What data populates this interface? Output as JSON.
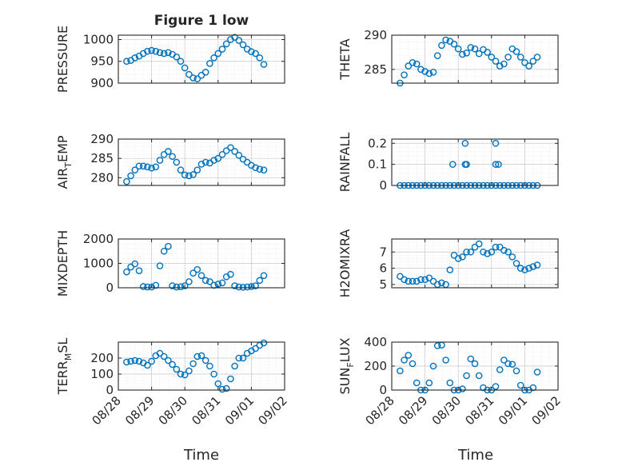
{
  "figure_title": "Figure 1 low",
  "xaxis_title": "Time",
  "date_ticks": [
    "08/28",
    "08/29",
    "08/30",
    "08/31",
    "09/01",
    "09/02"
  ],
  "colors": {
    "marker": "#0072BD",
    "axis": "#262626",
    "grid": "#c8c8c8",
    "text": "#262626"
  },
  "chart_data": [
    {
      "type": "scatter",
      "title": "Figure 1 low",
      "ylabel": "PRESSURE",
      "ylabel_sub": "",
      "ylim": [
        900,
        1010
      ],
      "yticks": [
        900,
        950,
        1000
      ],
      "ytick_labels": [
        "900",
        "950",
        "1000"
      ],
      "grid": true,
      "xlim": [
        "08/28",
        "09/02"
      ],
      "x": [
        "08/28 06:00",
        "08/28 09:00",
        "08/28 12:00",
        "08/28 15:00",
        "08/28 18:00",
        "08/28 21:00",
        "08/29 00:00",
        "08/29 03:00",
        "08/29 06:00",
        "08/29 09:00",
        "08/29 12:00",
        "08/29 15:00",
        "08/29 18:00",
        "08/29 21:00",
        "08/30 00:00",
        "08/30 03:00",
        "08/30 06:00",
        "08/30 09:00",
        "08/30 12:00",
        "08/30 15:00",
        "08/30 18:00",
        "08/30 21:00",
        "08/31 00:00",
        "08/31 03:00",
        "08/31 06:00",
        "08/31 09:00",
        "08/31 12:00",
        "08/31 15:00",
        "08/31 18:00",
        "08/31 21:00",
        "09/01 00:00",
        "09/01 03:00",
        "09/01 06:00",
        "09/01 09:00"
      ],
      "y": [
        950,
        952,
        958,
        962,
        968,
        973,
        975,
        973,
        970,
        968,
        970,
        966,
        960,
        950,
        935,
        920,
        912,
        910,
        918,
        925,
        945,
        958,
        968,
        978,
        990,
        1000,
        1005,
        998,
        988,
        978,
        972,
        968,
        958,
        943
      ]
    },
    {
      "type": "scatter",
      "ylabel": "THETA",
      "ylabel_sub": "",
      "ylim": [
        283,
        290
      ],
      "yticks": [
        285,
        290
      ],
      "ytick_labels": [
        "285",
        "290"
      ],
      "grid": true,
      "xlim": [
        "08/28",
        "09/02"
      ],
      "x": [
        "08/28 06:00",
        "08/28 09:00",
        "08/28 12:00",
        "08/28 15:00",
        "08/28 18:00",
        "08/28 21:00",
        "08/29 00:00",
        "08/29 03:00",
        "08/29 06:00",
        "08/29 09:00",
        "08/29 12:00",
        "08/29 15:00",
        "08/29 18:00",
        "08/29 21:00",
        "08/30 00:00",
        "08/30 03:00",
        "08/30 06:00",
        "08/30 09:00",
        "08/30 12:00",
        "08/30 15:00",
        "08/30 18:00",
        "08/30 21:00",
        "08/31 00:00",
        "08/31 03:00",
        "08/31 06:00",
        "08/31 09:00",
        "08/31 12:00",
        "08/31 15:00",
        "08/31 18:00",
        "08/31 21:00",
        "09/01 00:00",
        "09/01 03:00",
        "09/01 06:00",
        "09/01 09:00"
      ],
      "y": [
        283.0,
        284.2,
        285.5,
        286.0,
        285.8,
        285.0,
        284.7,
        284.4,
        284.6,
        287.0,
        288.5,
        289.3,
        289.1,
        288.7,
        288.0,
        287.2,
        287.4,
        288.2,
        288.0,
        287.3,
        287.9,
        287.5,
        286.8,
        286.2,
        285.5,
        285.8,
        286.8,
        288.0,
        287.6,
        286.8,
        286.0,
        285.5,
        286.2,
        286.8
      ]
    },
    {
      "type": "scatter",
      "ylabel": "AIR",
      "ylabel_sub": "T",
      "ylabel_rest": "EMP",
      "ylim": [
        278,
        290
      ],
      "yticks": [
        280,
        285,
        290
      ],
      "ytick_labels": [
        "280",
        "285",
        "290"
      ],
      "grid": true,
      "xlim": [
        "08/28",
        "09/02"
      ],
      "x": [
        "08/28 06:00",
        "08/28 09:00",
        "08/28 12:00",
        "08/28 15:00",
        "08/28 18:00",
        "08/28 21:00",
        "08/29 00:00",
        "08/29 03:00",
        "08/29 06:00",
        "08/29 09:00",
        "08/29 12:00",
        "08/29 15:00",
        "08/29 18:00",
        "08/29 21:00",
        "08/30 00:00",
        "08/30 03:00",
        "08/30 06:00",
        "08/30 09:00",
        "08/30 12:00",
        "08/30 15:00",
        "08/30 18:00",
        "08/30 21:00",
        "08/31 00:00",
        "08/31 03:00",
        "08/31 06:00",
        "08/31 09:00",
        "08/31 12:00",
        "08/31 15:00",
        "08/31 18:00",
        "08/31 21:00",
        "09/01 00:00",
        "09/01 03:00",
        "09/01 06:00",
        "09/01 09:00"
      ],
      "y": [
        279.0,
        280.5,
        282.0,
        283.0,
        283.0,
        282.8,
        282.5,
        282.8,
        284.5,
        286.0,
        286.8,
        285.5,
        284.0,
        282.0,
        280.7,
        280.5,
        280.8,
        282.0,
        283.5,
        284.0,
        283.8,
        284.5,
        285.0,
        286.0,
        287.0,
        287.8,
        286.8,
        285.8,
        284.8,
        284.0,
        283.2,
        282.6,
        282.2,
        282.0
      ]
    },
    {
      "type": "scatter",
      "ylabel": "RAINFALL",
      "ylabel_sub": "",
      "ylim": [
        0,
        0.22
      ],
      "yticks": [
        0,
        0.1,
        0.2
      ],
      "ytick_labels": [
        "0",
        "0.1",
        "0.2"
      ],
      "grid": true,
      "xlim": [
        "08/28",
        "09/02"
      ],
      "x": [
        "08/28 06:00",
        "08/28 09:00",
        "08/28 12:00",
        "08/28 15:00",
        "08/28 18:00",
        "08/28 21:00",
        "08/29 00:00",
        "08/29 03:00",
        "08/29 06:00",
        "08/29 09:00",
        "08/29 12:00",
        "08/29 15:00",
        "08/29 18:00",
        "08/29 21:00",
        "08/30 00:00",
        "08/30 03:00",
        "08/30 06:00",
        "08/30 09:00",
        "08/30 12:00",
        "08/30 15:00",
        "08/30 18:00",
        "08/30 21:00",
        "08/31 00:00",
        "08/31 03:00",
        "08/31 06:00",
        "08/31 09:00",
        "08/31 12:00",
        "08/31 15:00",
        "08/31 18:00",
        "08/31 21:00",
        "09/01 00:00",
        "09/01 03:00",
        "09/01 06:00",
        "09/01 09:00",
        "08/29 20:00",
        "08/30 05:00",
        "08/30 05:00",
        "08/30 06:00",
        "08/31 03:00",
        "08/31 03:00",
        "08/31 05:00"
      ],
      "y": [
        0,
        0,
        0,
        0,
        0,
        0,
        0,
        0,
        0,
        0,
        0,
        0,
        0,
        0,
        0,
        0,
        0,
        0,
        0,
        0,
        0,
        0,
        0,
        0,
        0,
        0,
        0,
        0,
        0,
        0,
        0,
        0,
        0,
        0,
        0.1,
        0.2,
        0.1,
        0.1,
        0.2,
        0.1,
        0.1
      ]
    },
    {
      "type": "scatter",
      "ylabel": "MIXDEPTH",
      "ylabel_sub": "",
      "ylim": [
        0,
        2000
      ],
      "yticks": [
        0,
        1000,
        2000
      ],
      "ytick_labels": [
        "0",
        "1000",
        "2000"
      ],
      "grid": true,
      "xlim": [
        "08/28",
        "09/02"
      ],
      "x": [
        "08/28 06:00",
        "08/28 09:00",
        "08/28 12:00",
        "08/28 15:00",
        "08/28 18:00",
        "08/28 21:00",
        "08/29 00:00",
        "08/29 03:00",
        "08/29 06:00",
        "08/29 09:00",
        "08/29 12:00",
        "08/29 15:00",
        "08/29 18:00",
        "08/29 21:00",
        "08/30 00:00",
        "08/30 03:00",
        "08/30 06:00",
        "08/30 09:00",
        "08/30 12:00",
        "08/30 15:00",
        "08/30 18:00",
        "08/30 21:00",
        "08/31 00:00",
        "08/31 03:00",
        "08/31 06:00",
        "08/31 09:00",
        "08/31 12:00",
        "08/31 15:00",
        "08/31 18:00",
        "08/31 21:00",
        "09/01 00:00",
        "09/01 03:00",
        "09/01 06:00",
        "09/01 09:00"
      ],
      "y": [
        650,
        850,
        980,
        700,
        50,
        30,
        30,
        100,
        900,
        1500,
        1700,
        80,
        30,
        40,
        80,
        250,
        600,
        750,
        500,
        300,
        250,
        100,
        150,
        200,
        450,
        550,
        80,
        30,
        20,
        30,
        50,
        80,
        300,
        500
      ]
    },
    {
      "type": "scatter",
      "ylabel": "H2OMIXRA",
      "ylabel_sub": "",
      "ylim": [
        4.8,
        7.8
      ],
      "yticks": [
        5,
        6,
        7
      ],
      "ytick_labels": [
        "5",
        "6",
        "7"
      ],
      "grid": true,
      "xlim": [
        "08/28",
        "09/02"
      ],
      "x": [
        "08/28 06:00",
        "08/28 09:00",
        "08/28 12:00",
        "08/28 15:00",
        "08/28 18:00",
        "08/28 21:00",
        "08/29 00:00",
        "08/29 03:00",
        "08/29 06:00",
        "08/29 09:00",
        "08/29 12:00",
        "08/29 15:00",
        "08/29 18:00",
        "08/29 21:00",
        "08/30 00:00",
        "08/30 03:00",
        "08/30 06:00",
        "08/30 09:00",
        "08/30 12:00",
        "08/30 15:00",
        "08/30 18:00",
        "08/30 21:00",
        "08/31 00:00",
        "08/31 03:00",
        "08/31 06:00",
        "08/31 09:00",
        "08/31 12:00",
        "08/31 15:00",
        "08/31 18:00",
        "08/31 21:00",
        "09/01 00:00",
        "09/01 03:00",
        "09/01 06:00",
        "09/01 09:00"
      ],
      "y": [
        5.5,
        5.3,
        5.2,
        5.2,
        5.2,
        5.3,
        5.3,
        5.4,
        5.2,
        5.0,
        5.1,
        5.0,
        5.9,
        6.8,
        6.6,
        6.7,
        7.0,
        7.0,
        7.3,
        7.5,
        7.0,
        6.9,
        7.0,
        7.3,
        7.3,
        7.1,
        7.0,
        6.7,
        6.3,
        6.0,
        5.9,
        6.0,
        6.1,
        6.2
      ]
    },
    {
      "type": "scatter",
      "ylabel": "TERR",
      "ylabel_sub": "M",
      "ylabel_rest": "SL",
      "ylim": [
        0,
        300
      ],
      "yticks": [
        0,
        100,
        200
      ],
      "ytick_labels": [
        "0",
        "100",
        "200"
      ],
      "grid": true,
      "xlim": [
        "08/28",
        "09/02"
      ],
      "x": [
        "08/28 06:00",
        "08/28 09:00",
        "08/28 12:00",
        "08/28 15:00",
        "08/28 18:00",
        "08/28 21:00",
        "08/29 00:00",
        "08/29 03:00",
        "08/29 06:00",
        "08/29 09:00",
        "08/29 12:00",
        "08/29 15:00",
        "08/29 18:00",
        "08/29 21:00",
        "08/30 00:00",
        "08/30 03:00",
        "08/30 06:00",
        "08/30 09:00",
        "08/30 12:00",
        "08/30 15:00",
        "08/30 18:00",
        "08/30 21:00",
        "08/31 00:00",
        "08/31 03:00",
        "08/31 06:00",
        "08/31 09:00",
        "08/31 12:00",
        "08/31 15:00",
        "08/31 18:00",
        "08/31 21:00",
        "09/01 00:00",
        "09/01 03:00",
        "09/01 06:00",
        "09/01 09:00"
      ],
      "y": [
        175,
        180,
        185,
        180,
        170,
        155,
        180,
        215,
        230,
        210,
        185,
        160,
        130,
        100,
        95,
        120,
        165,
        210,
        215,
        185,
        150,
        100,
        40,
        5,
        10,
        70,
        150,
        200,
        200,
        230,
        245,
        260,
        280,
        295
      ]
    },
    {
      "type": "scatter",
      "ylabel": "SUN",
      "ylabel_sub": "F",
      "ylabel_rest": "LUX",
      "ylim": [
        0,
        400
      ],
      "yticks": [
        0,
        200,
        400
      ],
      "ytick_labels": [
        "0",
        "200",
        "400"
      ],
      "grid": true,
      "xlim": [
        "08/28",
        "09/02"
      ],
      "x": [
        "08/28 06:00",
        "08/28 09:00",
        "08/28 12:00",
        "08/28 15:00",
        "08/28 18:00",
        "08/28 21:00",
        "08/29 00:00",
        "08/29 03:00",
        "08/29 06:00",
        "08/29 09:00",
        "08/29 12:00",
        "08/29 15:00",
        "08/29 18:00",
        "08/29 21:00",
        "08/30 00:00",
        "08/30 03:00",
        "08/30 06:00",
        "08/30 09:00",
        "08/30 12:00",
        "08/30 15:00",
        "08/30 18:00",
        "08/30 21:00",
        "08/31 00:00",
        "08/31 03:00",
        "08/31 06:00",
        "08/31 09:00",
        "08/31 12:00",
        "08/31 15:00",
        "08/31 18:00",
        "08/31 21:00",
        "09/01 00:00",
        "09/01 03:00",
        "09/01 06:00",
        "09/01 09:00"
      ],
      "y": [
        160,
        250,
        290,
        220,
        60,
        0,
        0,
        60,
        200,
        370,
        375,
        250,
        60,
        0,
        0,
        10,
        120,
        260,
        220,
        120,
        20,
        0,
        0,
        30,
        170,
        250,
        220,
        215,
        160,
        40,
        0,
        0,
        20,
        150
      ]
    }
  ]
}
